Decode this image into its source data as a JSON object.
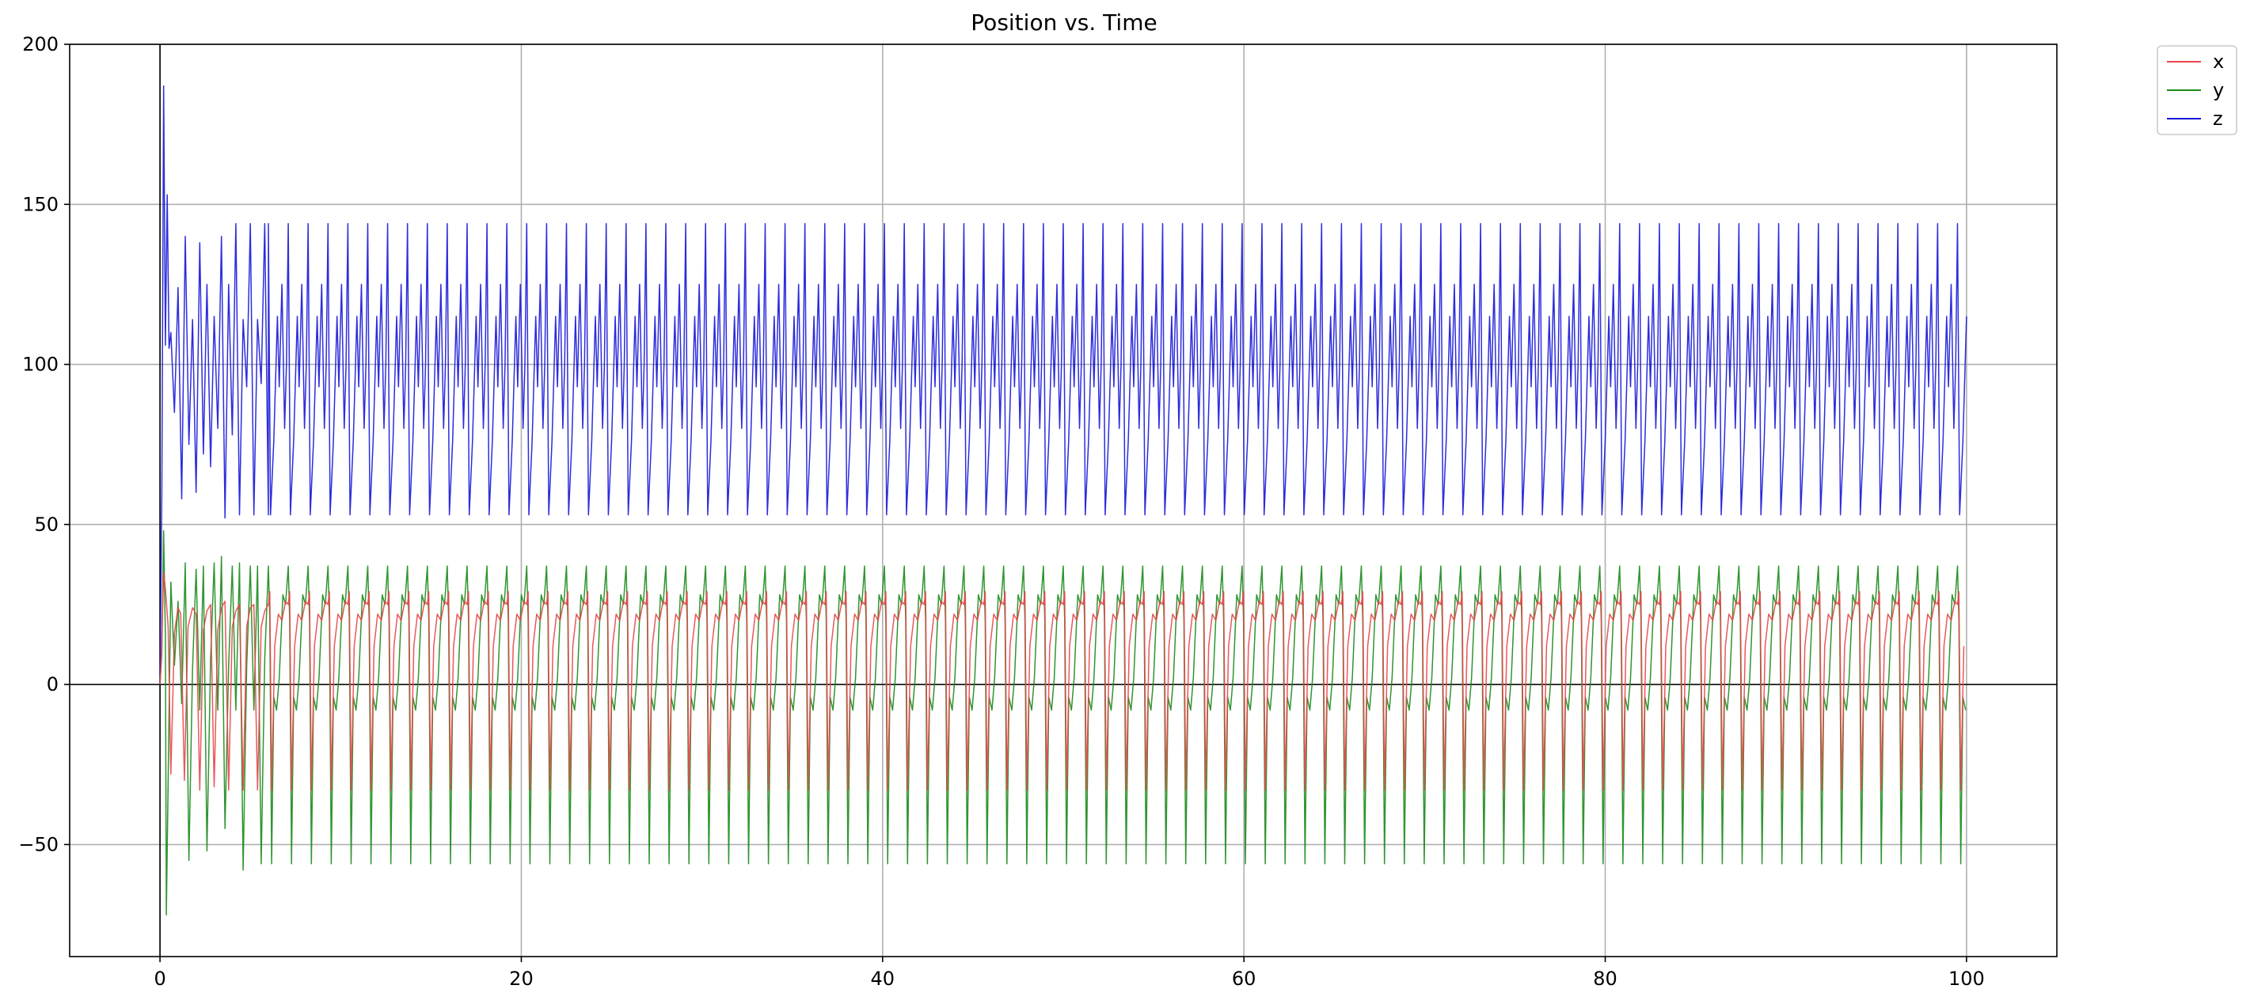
{
  "chart_data": {
    "type": "line",
    "title": "Position vs. Time",
    "xlabel": "",
    "ylabel": "",
    "xlim": [
      -5,
      105
    ],
    "ylim": [
      -85,
      200
    ],
    "xticks": [
      0,
      20,
      40,
      60,
      80,
      100
    ],
    "yticks": [
      -50,
      0,
      50,
      100,
      150,
      200
    ],
    "xtick_labels": [
      "0",
      "20",
      "40",
      "60",
      "80",
      "100"
    ],
    "ytick_labels": [
      "−50",
      "0",
      "50",
      "100",
      "150",
      "200"
    ],
    "grid": true,
    "reference_lines": {
      "x": 0,
      "y": 0
    },
    "legend": {
      "placement": "outside-top-right",
      "entries": [
        "x",
        "y",
        "z"
      ]
    },
    "series": [
      {
        "name": "x",
        "color": "#e8454a",
        "x": [
          0,
          0.05,
          0.1,
          0.2,
          0.3,
          0.45,
          0.6,
          0.8,
          1.0,
          1.15,
          1.35,
          1.55,
          1.8,
          2.0,
          2.2,
          2.4,
          2.6,
          2.8,
          3.0,
          3.2,
          3.4,
          3.6,
          3.8,
          4.0,
          4.2,
          4.4,
          4.6,
          4.8,
          5.0,
          5.2,
          5.4,
          5.6,
          5.8,
          6.0
        ],
        "values": [
          0,
          5,
          15,
          35,
          30,
          18,
          -28,
          16,
          24,
          22,
          -30,
          18,
          24,
          22,
          -33,
          17,
          23,
          25,
          -32,
          17,
          24,
          26,
          -33,
          18,
          23,
          25,
          -33,
          18,
          24,
          25,
          -33,
          18,
          23,
          25
        ]
      },
      {
        "name": "y",
        "color": "#1a8a1a",
        "x": [
          0,
          0.1,
          0.2,
          0.3,
          0.35,
          0.45,
          0.6,
          0.8,
          1.0,
          1.2,
          1.4,
          1.6,
          1.8,
          2.0,
          2.2,
          2.4,
          2.6,
          2.8,
          3.0,
          3.2,
          3.4,
          3.6,
          3.8,
          4.0,
          4.2,
          4.4,
          4.6,
          4.8,
          5.0,
          5.2,
          5.4,
          5.6,
          5.8,
          6.0
        ],
        "values": [
          0,
          10,
          48,
          15,
          -72,
          -30,
          32,
          6,
          26,
          -6,
          38,
          -55,
          5,
          36,
          -8,
          37,
          -52,
          8,
          38,
          -8,
          40,
          -45,
          6,
          37,
          -8,
          38,
          -58,
          6,
          37,
          -8,
          37,
          -56,
          8,
          37
        ]
      },
      {
        "name": "z",
        "color": "#1616d8",
        "x": [
          0,
          0.1,
          0.2,
          0.3,
          0.4,
          0.5,
          0.6,
          0.8,
          1.0,
          1.2,
          1.4,
          1.6,
          1.8,
          2.0,
          2.2,
          2.4,
          2.6,
          2.8,
          3.0,
          3.2,
          3.4,
          3.6,
          3.8,
          4.0,
          4.2,
          4.4,
          4.6,
          4.8,
          5.0,
          5.2,
          5.4,
          5.6,
          5.8,
          6.0
        ],
        "values": [
          0,
          60,
          187,
          106,
          153,
          105,
          110,
          85,
          124,
          58,
          140,
          75,
          114,
          60,
          138,
          72,
          125,
          68,
          115,
          80,
          140,
          52,
          125,
          78,
          144,
          53,
          114,
          93,
          144,
          53,
          114,
          94,
          144,
          53
        ]
      }
    ],
    "steady_state": {
      "period": 1.1,
      "note_series_shapes": {
        "x": {
          "points": [
            [
              0,
              25
            ],
            [
              0.08,
              29
            ],
            [
              0.18,
              -33
            ],
            [
              0.35,
              12
            ],
            [
              0.55,
              22
            ],
            [
              0.75,
              20
            ],
            [
              0.95,
              26
            ],
            [
              1.1,
              25
            ]
          ]
        },
        "y": {
          "points": [
            [
              0,
              37
            ],
            [
              0.08,
              20
            ],
            [
              0.18,
              -56
            ],
            [
              0.3,
              -4
            ],
            [
              0.45,
              -8
            ],
            [
              0.6,
              2
            ],
            [
              0.8,
              28
            ],
            [
              0.95,
              25
            ],
            [
              1.1,
              37
            ]
          ]
        },
        "z": {
          "points": [
            [
              0,
              144
            ],
            [
              0.12,
              53
            ],
            [
              0.3,
              76
            ],
            [
              0.5,
              115
            ],
            [
              0.6,
              93
            ],
            [
              0.75,
              125
            ],
            [
              0.9,
              80
            ],
            [
              1.0,
              100
            ],
            [
              1.1,
              144
            ]
          ]
        }
      }
    }
  }
}
